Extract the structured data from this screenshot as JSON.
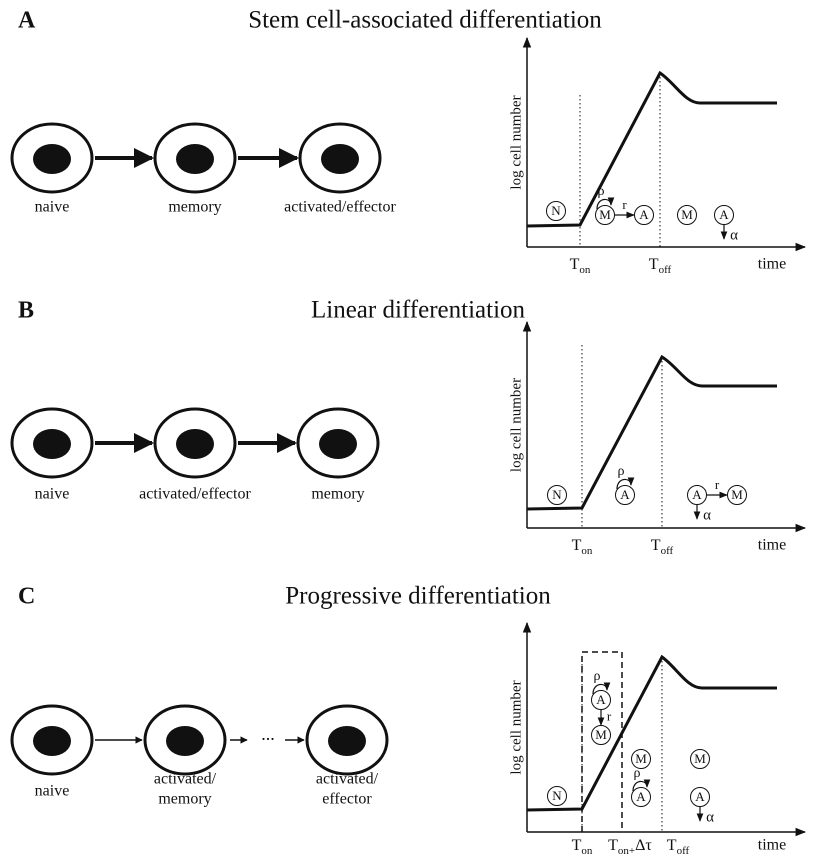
{
  "panels": [
    {
      "letter": "A",
      "title": "Stem cell-associated differentiation",
      "cells": [
        [
          "naive"
        ],
        [
          "memory"
        ],
        [
          "activated/effector"
        ]
      ],
      "graph": {
        "y_label": "log cell number",
        "x_label": "time",
        "markers": [
          {
            "base": "T",
            "sub": "on"
          },
          {
            "base": "T",
            "sub": "off"
          }
        ],
        "states": [
          "N",
          "M",
          "A",
          "M",
          "A"
        ],
        "rates": [
          "ρ",
          "r",
          "α"
        ]
      }
    },
    {
      "letter": "B",
      "title": "Linear differentiation",
      "cells": [
        [
          "naive"
        ],
        [
          "activated/effector"
        ],
        [
          "memory"
        ]
      ],
      "graph": {
        "y_label": "log cell number",
        "x_label": "time",
        "markers": [
          {
            "base": "T",
            "sub": "on"
          },
          {
            "base": "T",
            "sub": "off"
          }
        ],
        "states": [
          "N",
          "A",
          "A",
          "M"
        ],
        "rates": [
          "ρ",
          "r",
          "α"
        ]
      }
    },
    {
      "letter": "C",
      "title": "Progressive differentiation",
      "cells": [
        [
          "naive"
        ],
        [
          "activated/",
          "memory"
        ],
        [
          "activated/",
          "effector"
        ]
      ],
      "connector": "...",
      "graph": {
        "y_label": "log cell number",
        "x_label": "time",
        "markers": [
          {
            "base": "T",
            "sub": "on"
          },
          {
            "base": "T",
            "sub": "on+",
            "tail": "Δτ"
          },
          {
            "base": "T",
            "sub": "off"
          }
        ],
        "states": [
          "N",
          "A",
          "M",
          "M",
          "A",
          "M",
          "A"
        ],
        "rates": [
          "ρ",
          "r",
          "ρ",
          "α"
        ]
      }
    }
  ]
}
